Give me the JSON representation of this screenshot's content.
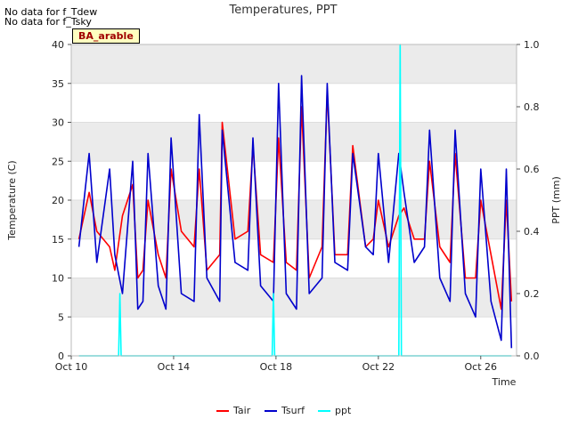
{
  "notes": [
    "No data for f_Tdew",
    "No data for f_Tsky"
  ],
  "site_label": "BA_arable",
  "colors": {
    "Tair": "#ff0000",
    "Tsurf": "#0000cc",
    "ppt": "#00ffff",
    "band": "#ebebeb"
  },
  "chart_data": {
    "type": "line",
    "title": "Temperatures, PPT",
    "xlabel": "Time",
    "ylabel": "Temperature (C)",
    "y2label": "PPT (mm)",
    "xlim": [
      10,
      27.4
    ],
    "ylim": [
      0,
      40
    ],
    "y2lim": [
      0,
      1.0
    ],
    "x_ticks": [
      {
        "v": 10,
        "label": "Oct 10"
      },
      {
        "v": 14,
        "label": "Oct 14"
      },
      {
        "v": 18,
        "label": "Oct 18"
      },
      {
        "v": 22,
        "label": "Oct 22"
      },
      {
        "v": 26,
        "label": "Oct 26"
      }
    ],
    "y_ticks": [
      0,
      5,
      10,
      15,
      20,
      25,
      30,
      35,
      40
    ],
    "y2_ticks": [
      "0.0",
      "0.2",
      "0.4",
      "0.6",
      "0.8",
      "1.0"
    ],
    "grid": true,
    "legend_position": "bottom",
    "series": [
      {
        "name": "Tair",
        "axis": "left",
        "x": [
          10.3,
          10.7,
          11.0,
          11.5,
          11.7,
          12.0,
          12.4,
          12.6,
          12.8,
          13.0,
          13.4,
          13.7,
          13.9,
          14.3,
          14.8,
          15.0,
          15.3,
          15.8,
          15.9,
          16.4,
          16.9,
          17.1,
          17.4,
          17.9,
          18.1,
          18.4,
          18.8,
          19.0,
          19.3,
          19.8,
          20.0,
          20.3,
          20.8,
          21.0,
          21.5,
          21.8,
          22.0,
          22.4,
          22.8,
          23.0,
          23.4,
          23.8,
          24.0,
          24.4,
          24.8,
          25.0,
          25.4,
          25.8,
          26.0,
          26.4,
          26.8,
          27.0,
          27.2
        ],
        "y": [
          15,
          21,
          16,
          14,
          11,
          18,
          22,
          10,
          11,
          20,
          13,
          10,
          24,
          16,
          14,
          24,
          11,
          13,
          30,
          15,
          16,
          27,
          13,
          12,
          28,
          12,
          11,
          32,
          10,
          14,
          34,
          13,
          13,
          27,
          14,
          15,
          20,
          14,
          18,
          19,
          15,
          15,
          25,
          14,
          12,
          26,
          10,
          10,
          20,
          13,
          6,
          20,
          7
        ]
      },
      {
        "name": "Tsurf",
        "axis": "left",
        "x": [
          10.3,
          10.7,
          11.0,
          11.5,
          11.7,
          12.0,
          12.4,
          12.6,
          12.8,
          13.0,
          13.4,
          13.7,
          13.9,
          14.3,
          14.8,
          15.0,
          15.3,
          15.8,
          15.9,
          16.4,
          16.9,
          17.1,
          17.4,
          17.9,
          18.1,
          18.4,
          18.8,
          19.0,
          19.3,
          19.8,
          20.0,
          20.3,
          20.8,
          21.0,
          21.5,
          21.8,
          22.0,
          22.4,
          22.8,
          23.0,
          23.4,
          23.8,
          24.0,
          24.4,
          24.8,
          25.0,
          25.4,
          25.8,
          26.0,
          26.4,
          26.8,
          27.0,
          27.2
        ],
        "y": [
          14,
          26,
          12,
          24,
          13,
          8,
          25,
          6,
          7,
          26,
          9,
          6,
          28,
          8,
          7,
          31,
          10,
          7,
          29,
          12,
          11,
          28,
          9,
          7,
          35,
          8,
          6,
          36,
          8,
          10,
          35,
          12,
          11,
          26,
          14,
          13,
          26,
          12,
          26,
          21,
          12,
          14,
          29,
          10,
          7,
          29,
          8,
          5,
          24,
          7,
          2,
          24,
          1
        ]
      },
      {
        "name": "ppt",
        "axis": "right",
        "x": [
          10.3,
          11.85,
          11.9,
          11.95,
          12.0,
          17.85,
          17.9,
          17.95,
          18.0,
          22.8,
          22.85,
          22.9,
          22.95,
          27.2
        ],
        "y": [
          0,
          0,
          0.2,
          0,
          0,
          0,
          0.2,
          0,
          0,
          0,
          1.0,
          0,
          0,
          0
        ]
      }
    ]
  }
}
